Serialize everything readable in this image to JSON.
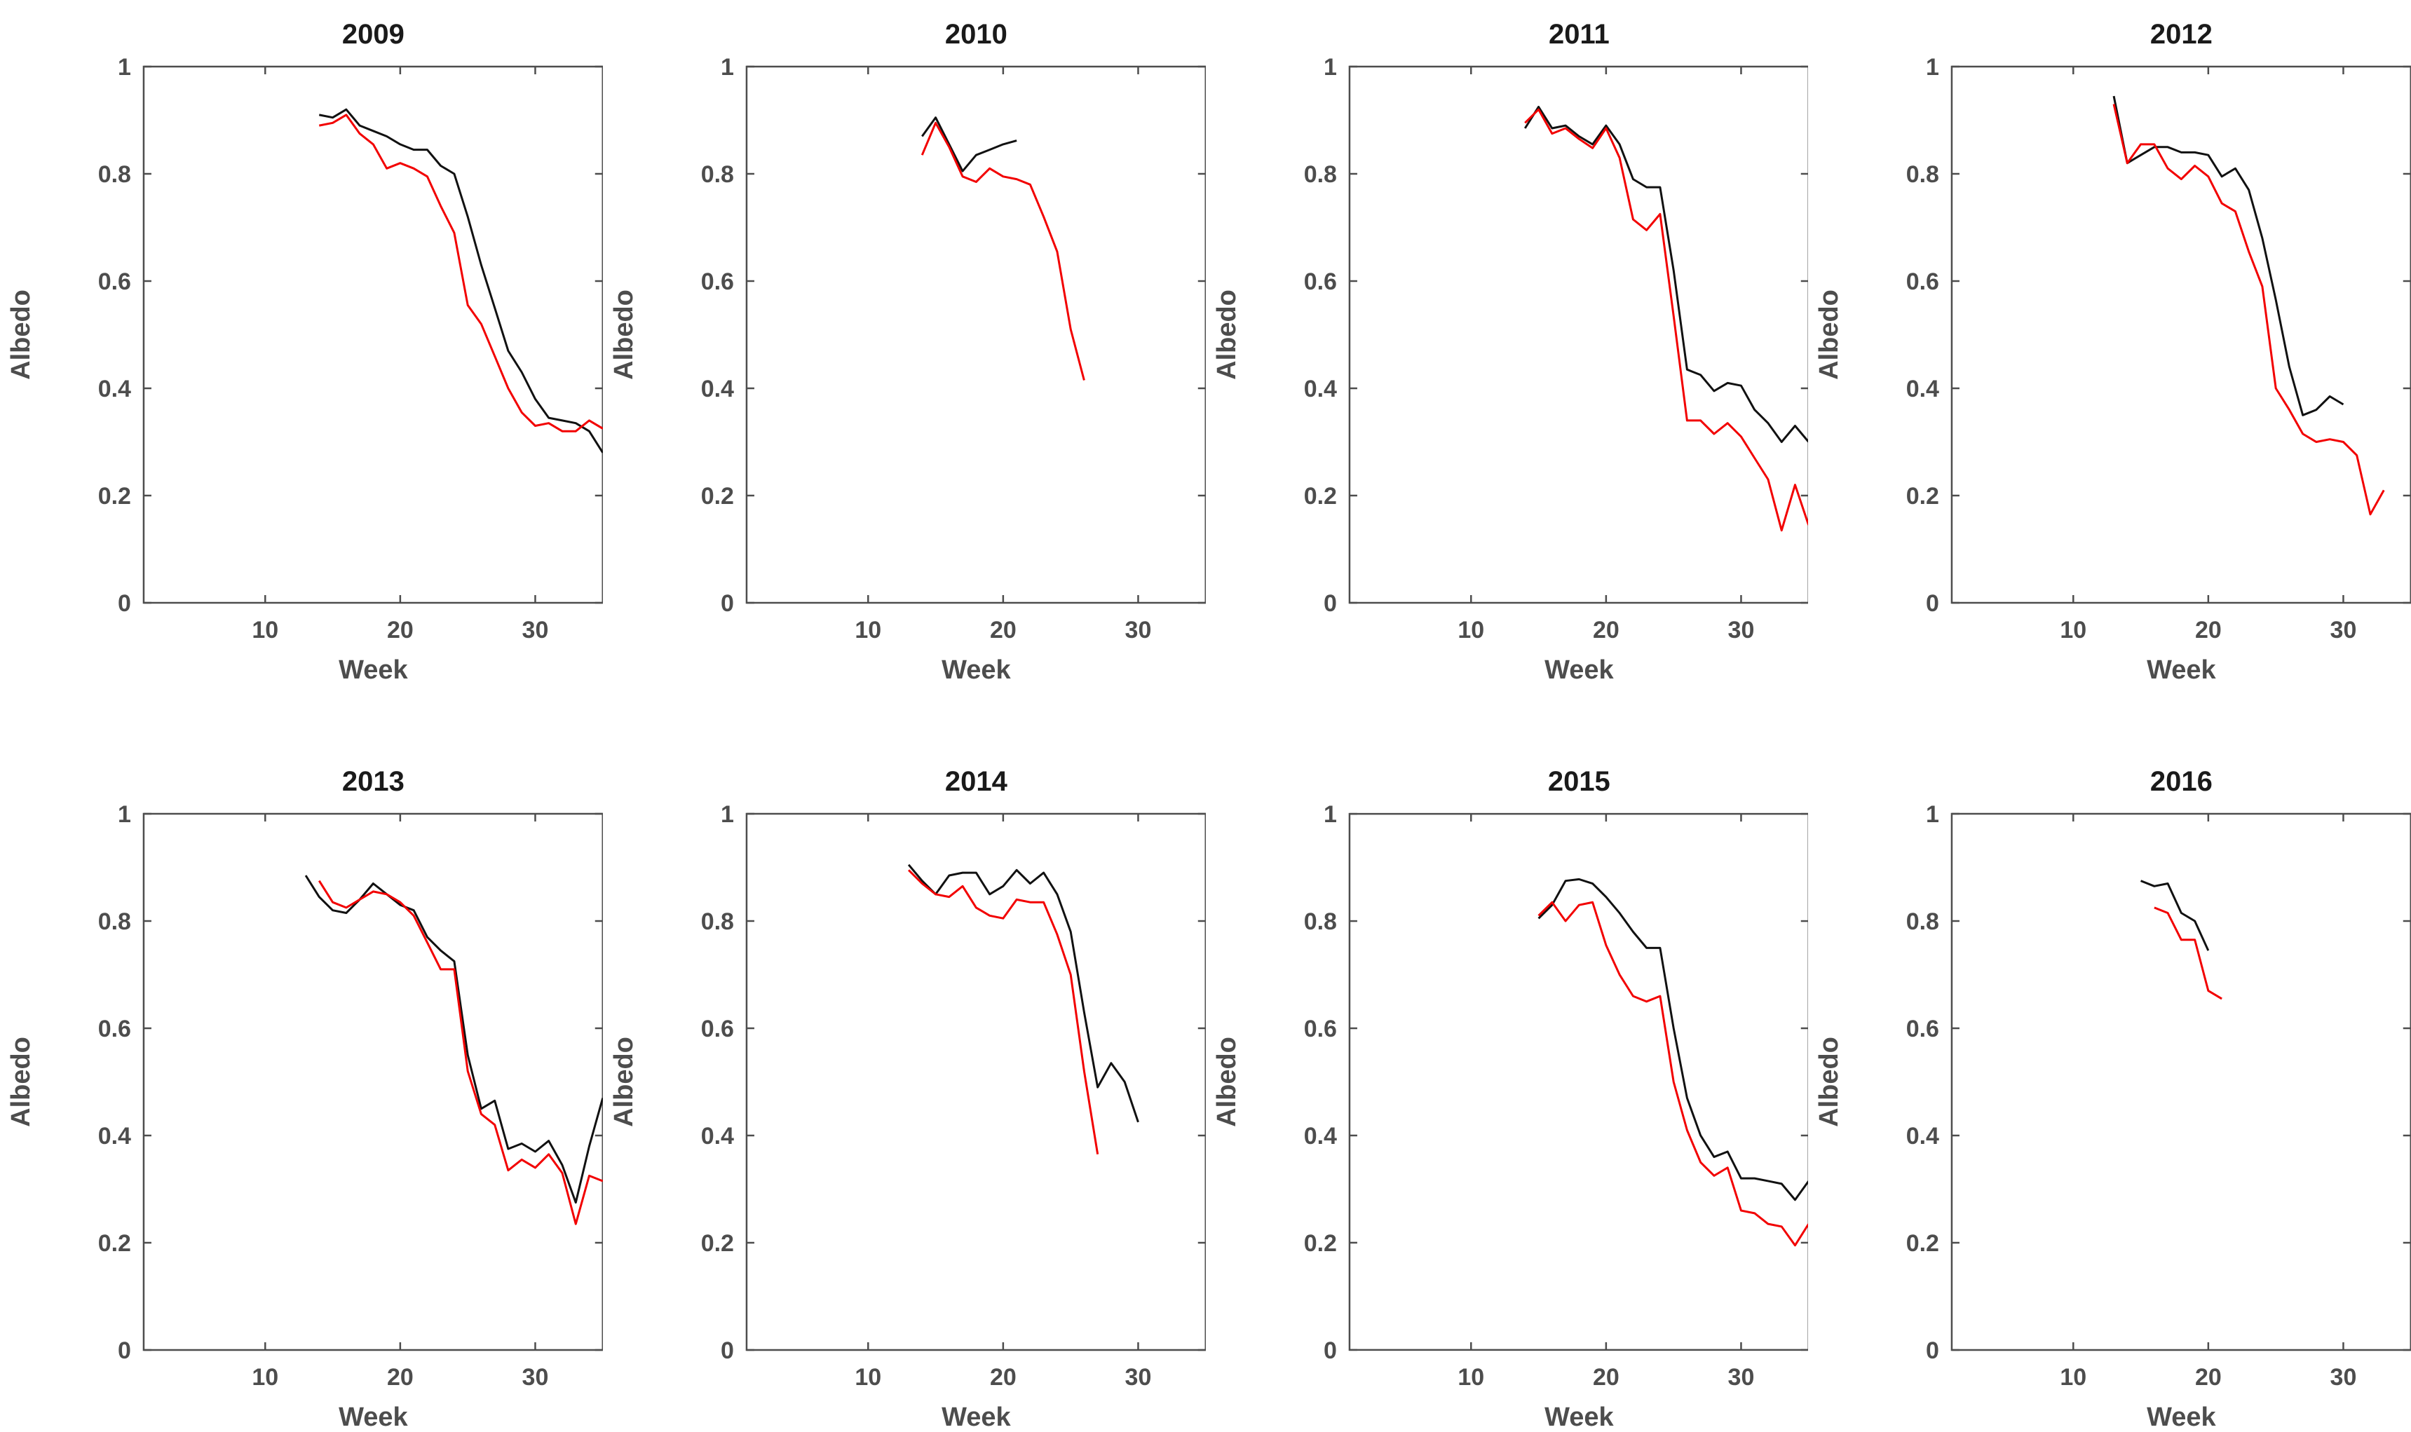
{
  "figure": {
    "background": "#ffffff",
    "axis_color": "#4d4d4d",
    "tick_label_color": "#4d4d4d",
    "title_color": "#1a1a1a"
  },
  "chart_data": [
    {
      "type": "line",
      "title": "2009",
      "xlabel": "Week",
      "ylabel": "Albedo",
      "xlim": [
        1,
        35
      ],
      "ylim": [
        0,
        1
      ],
      "xticks": [
        10,
        20,
        30
      ],
      "xticklabels": [
        "10",
        "20",
        "30"
      ],
      "yticks": [
        0,
        0.2,
        0.4,
        0.6,
        0.8,
        1
      ],
      "yticklabels": [
        "0",
        "0.2",
        "0.4",
        "0.6",
        "0.8",
        "1"
      ],
      "grid": false,
      "legend": null,
      "series": [
        {
          "name": "black",
          "color": "#111111",
          "start_week": 14,
          "values": [
            0.91,
            0.905,
            0.92,
            0.89,
            0.88,
            0.87,
            0.855,
            0.845,
            0.845,
            0.815,
            0.8,
            0.72,
            0.63,
            0.55,
            0.47,
            0.43,
            0.38,
            0.345,
            0.34,
            0.335,
            0.32,
            0.28
          ]
        },
        {
          "name": "red",
          "color": "#f20000",
          "start_week": 14,
          "values": [
            0.89,
            0.895,
            0.91,
            0.875,
            0.855,
            0.81,
            0.82,
            0.81,
            0.795,
            0.74,
            0.69,
            0.555,
            0.52,
            0.46,
            0.4,
            0.355,
            0.33,
            0.335,
            0.32,
            0.32,
            0.34,
            0.325
          ]
        }
      ]
    },
    {
      "type": "line",
      "title": "2010",
      "xlabel": "Week",
      "ylabel": "Albedo",
      "xlim": [
        1,
        35
      ],
      "ylim": [
        0,
        1
      ],
      "xticks": [
        10,
        20,
        30
      ],
      "xticklabels": [
        "10",
        "20",
        "30"
      ],
      "yticks": [
        0,
        0.2,
        0.4,
        0.6,
        0.8,
        1
      ],
      "yticklabels": [
        "0",
        "0.2",
        "0.4",
        "0.6",
        "0.8",
        "1"
      ],
      "grid": false,
      "legend": null,
      "series": [
        {
          "name": "black",
          "color": "#111111",
          "start_week": 14,
          "values": [
            0.87,
            0.905,
            0.855,
            0.805,
            0.835,
            0.845,
            0.855,
            0.862
          ]
        },
        {
          "name": "red",
          "color": "#f20000",
          "start_week": 14,
          "values": [
            0.835,
            0.895,
            0.85,
            0.795,
            0.785,
            0.81,
            0.795,
            0.79,
            0.78,
            0.72,
            0.655,
            0.51,
            0.415
          ]
        }
      ]
    },
    {
      "type": "line",
      "title": "2011",
      "xlabel": "Week",
      "ylabel": "Albedo",
      "xlim": [
        1,
        35
      ],
      "ylim": [
        0,
        1
      ],
      "xticks": [
        10,
        20,
        30
      ],
      "xticklabels": [
        "10",
        "20",
        "30"
      ],
      "yticks": [
        0,
        0.2,
        0.4,
        0.6,
        0.8,
        1
      ],
      "yticklabels": [
        "0",
        "0.2",
        "0.4",
        "0.6",
        "0.8",
        "1"
      ],
      "grid": false,
      "legend": null,
      "series": [
        {
          "name": "black",
          "color": "#111111",
          "start_week": 14,
          "values": [
            0.885,
            0.925,
            0.885,
            0.89,
            0.87,
            0.855,
            0.89,
            0.855,
            0.79,
            0.775,
            0.775,
            0.62,
            0.435,
            0.425,
            0.395,
            0.41,
            0.405,
            0.36,
            0.335,
            0.3,
            0.33,
            0.3
          ]
        },
        {
          "name": "red",
          "color": "#f20000",
          "start_week": 14,
          "values": [
            0.895,
            0.92,
            0.875,
            0.885,
            0.865,
            0.848,
            0.885,
            0.83,
            0.715,
            0.695,
            0.725,
            0.535,
            0.34,
            0.34,
            0.315,
            0.335,
            0.31,
            0.27,
            0.23,
            0.135,
            0.22,
            0.145
          ]
        }
      ]
    },
    {
      "type": "line",
      "title": "2012",
      "xlabel": "Week",
      "ylabel": "Albedo",
      "xlim": [
        1,
        35
      ],
      "ylim": [
        0,
        1
      ],
      "xticks": [
        10,
        20,
        30
      ],
      "xticklabels": [
        "10",
        "20",
        "30"
      ],
      "yticks": [
        0,
        0.2,
        0.4,
        0.6,
        0.8,
        1
      ],
      "yticklabels": [
        "0",
        "0.2",
        "0.4",
        "0.6",
        "0.8",
        "1"
      ],
      "grid": false,
      "legend": null,
      "series": [
        {
          "name": "black",
          "color": "#111111",
          "start_week": 13,
          "values": [
            0.945,
            0.82,
            0.835,
            0.85,
            0.85,
            0.84,
            0.84,
            0.835,
            0.795,
            0.81,
            0.77,
            0.68,
            0.565,
            0.44,
            0.35,
            0.36,
            0.385,
            0.37
          ]
        },
        {
          "name": "red",
          "color": "#f20000",
          "start_week": 13,
          "values": [
            0.93,
            0.82,
            0.855,
            0.855,
            0.81,
            0.79,
            0.815,
            0.795,
            0.745,
            0.73,
            0.655,
            0.59,
            0.4,
            0.36,
            0.315,
            0.3,
            0.305,
            0.3,
            0.275,
            0.165,
            0.21
          ]
        }
      ]
    },
    {
      "type": "line",
      "title": "2013",
      "xlabel": "Week",
      "ylabel": "Albedo",
      "xlim": [
        1,
        35
      ],
      "ylim": [
        0,
        1
      ],
      "xticks": [
        10,
        20,
        30
      ],
      "xticklabels": [
        "10",
        "20",
        "30"
      ],
      "yticks": [
        0,
        0.2,
        0.4,
        0.6,
        0.8,
        1
      ],
      "yticklabels": [
        "0",
        "0.2",
        "0.4",
        "0.6",
        "0.8",
        "1"
      ],
      "grid": false,
      "legend": null,
      "series": [
        {
          "name": "black",
          "color": "#111111",
          "start_week": 13,
          "values": [
            0.885,
            0.845,
            0.82,
            0.815,
            0.84,
            0.87,
            0.85,
            0.83,
            0.82,
            0.77,
            0.745,
            0.725,
            0.55,
            0.45,
            0.465,
            0.375,
            0.385,
            0.37,
            0.39,
            0.345,
            0.275,
            0.38,
            0.47
          ]
        },
        {
          "name": "red",
          "color": "#f20000",
          "start_week": 14,
          "values": [
            0.875,
            0.835,
            0.825,
            0.84,
            0.855,
            0.85,
            0.835,
            0.81,
            0.76,
            0.71,
            0.71,
            0.52,
            0.44,
            0.42,
            0.335,
            0.355,
            0.34,
            0.365,
            0.33,
            0.235,
            0.325,
            0.315
          ]
        }
      ]
    },
    {
      "type": "line",
      "title": "2014",
      "xlabel": "Week",
      "ylabel": "Albedo",
      "xlim": [
        1,
        35
      ],
      "ylim": [
        0,
        1
      ],
      "xticks": [
        10,
        20,
        30
      ],
      "xticklabels": [
        "10",
        "20",
        "30"
      ],
      "yticks": [
        0,
        0.2,
        0.4,
        0.6,
        0.8,
        1
      ],
      "yticklabels": [
        "0",
        "0.2",
        "0.4",
        "0.6",
        "0.8",
        "1"
      ],
      "grid": false,
      "legend": null,
      "series": [
        {
          "name": "black",
          "color": "#111111",
          "start_week": 13,
          "values": [
            0.905,
            0.875,
            0.85,
            0.885,
            0.89,
            0.89,
            0.85,
            0.865,
            0.895,
            0.87,
            0.89,
            0.85,
            0.78,
            0.63,
            0.49,
            0.535,
            0.5,
            0.425
          ]
        },
        {
          "name": "red",
          "color": "#f20000",
          "start_week": 13,
          "values": [
            0.895,
            0.87,
            0.85,
            0.845,
            0.865,
            0.825,
            0.81,
            0.805,
            0.84,
            0.835,
            0.835,
            0.775,
            0.7,
            0.52,
            0.365
          ]
        }
      ]
    },
    {
      "type": "line",
      "title": "2015",
      "xlabel": "Week",
      "ylabel": "Albedo",
      "xlim": [
        1,
        35
      ],
      "ylim": [
        0,
        1
      ],
      "xticks": [
        10,
        20,
        30
      ],
      "xticklabels": [
        "10",
        "20",
        "30"
      ],
      "yticks": [
        0,
        0.2,
        0.4,
        0.6,
        0.8,
        1
      ],
      "yticklabels": [
        "0",
        "0.2",
        "0.4",
        "0.6",
        "0.8",
        "1"
      ],
      "grid": false,
      "legend": null,
      "series": [
        {
          "name": "black",
          "color": "#111111",
          "start_week": 15,
          "values": [
            0.805,
            0.83,
            0.875,
            0.878,
            0.87,
            0.845,
            0.815,
            0.78,
            0.75,
            0.75,
            0.6,
            0.47,
            0.4,
            0.36,
            0.37,
            0.32,
            0.32,
            0.315,
            0.31,
            0.28,
            0.315
          ]
        },
        {
          "name": "red",
          "color": "#f20000",
          "start_week": 15,
          "values": [
            0.81,
            0.835,
            0.8,
            0.83,
            0.835,
            0.755,
            0.7,
            0.66,
            0.65,
            0.66,
            0.5,
            0.41,
            0.35,
            0.325,
            0.34,
            0.26,
            0.255,
            0.235,
            0.23,
            0.195,
            0.235
          ]
        }
      ]
    },
    {
      "type": "line",
      "title": "2016",
      "xlabel": "Week",
      "ylabel": "Albedo",
      "xlim": [
        1,
        35
      ],
      "ylim": [
        0,
        1
      ],
      "xticks": [
        10,
        20,
        30
      ],
      "xticklabels": [
        "10",
        "20",
        "30"
      ],
      "yticks": [
        0,
        0.2,
        0.4,
        0.6,
        0.8,
        1
      ],
      "yticklabels": [
        "0",
        "0.2",
        "0.4",
        "0.6",
        "0.8",
        "1"
      ],
      "grid": false,
      "legend": null,
      "series": [
        {
          "name": "black",
          "color": "#111111",
          "start_week": 15,
          "values": [
            0.875,
            0.865,
            0.87,
            0.815,
            0.8,
            0.745
          ]
        },
        {
          "name": "red",
          "color": "#f20000",
          "start_week": 16,
          "values": [
            0.825,
            0.815,
            0.765,
            0.765,
            0.67,
            0.655
          ]
        }
      ]
    }
  ]
}
